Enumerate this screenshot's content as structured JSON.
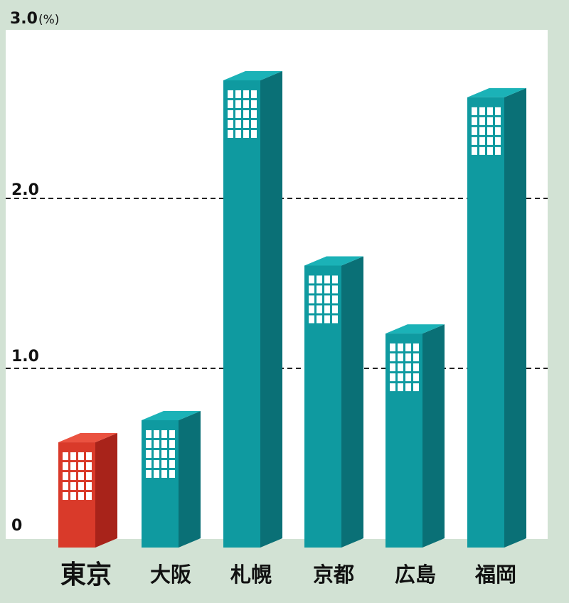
{
  "chart_data": {
    "type": "bar",
    "style": "3d-buildings",
    "title": "",
    "xlabel": "",
    "ylabel": "",
    "y_unit": "(%)",
    "ylim": [
      0,
      3.0
    ],
    "yticks": [
      {
        "value": 0,
        "label": "0"
      },
      {
        "value": 1.0,
        "label": "1.0"
      },
      {
        "value": 2.0,
        "label": "2.0"
      },
      {
        "value": 3.0,
        "label": "3.0"
      }
    ],
    "gridlines": [
      1.0,
      2.0
    ],
    "categories": [
      "東京",
      "大阪",
      "札幌",
      "京都",
      "広島",
      "福岡"
    ],
    "values": [
      0.64,
      0.77,
      2.77,
      1.68,
      1.28,
      2.67
    ],
    "highlight_category": "東京",
    "colors": {
      "highlight_front": "#d93a2a",
      "highlight_side": "#a8231a",
      "highlight_top": "#ea5240",
      "bar_front": "#0f9aa0",
      "bar_side": "#0a7076",
      "bar_top": "#1bb2b7",
      "window": "#ffffff",
      "panel": "#ffffff",
      "background": "#d2e2d4",
      "text": "#111111"
    }
  }
}
